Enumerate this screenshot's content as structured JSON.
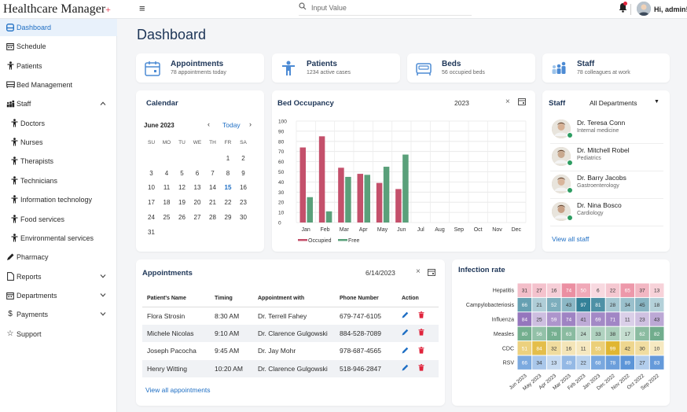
{
  "header": {
    "brand": "Healthcare Manager",
    "brand_plus": "+",
    "search_placeholder": "Input Value",
    "greeting": "Hi, admin!"
  },
  "sidebar": {
    "items": [
      {
        "label": "Dashboard",
        "icon": "dashboard-icon",
        "active": true
      },
      {
        "label": "Schedule",
        "icon": "calendar-icon"
      },
      {
        "label": "Patients",
        "icon": "person-icon"
      },
      {
        "label": "Bed Management",
        "icon": "bed-icon"
      },
      {
        "label": "Staff",
        "icon": "staff-icon",
        "expanded": true
      },
      {
        "label": "Doctors",
        "icon": "person-icon",
        "sub": true
      },
      {
        "label": "Nurses",
        "icon": "person-icon",
        "sub": true
      },
      {
        "label": "Therapists",
        "icon": "person-icon",
        "sub": true
      },
      {
        "label": "Technicians",
        "icon": "person-icon",
        "sub": true
      },
      {
        "label": "Information technology",
        "icon": "person-icon",
        "sub": true
      },
      {
        "label": "Food services",
        "icon": "person-icon",
        "sub": true
      },
      {
        "label": "Environmental services",
        "icon": "person-icon",
        "sub": true
      },
      {
        "label": "Pharmacy",
        "icon": "pen-icon"
      },
      {
        "label": "Reports",
        "icon": "document-icon",
        "chevron": true
      },
      {
        "label": "Departments",
        "icon": "calendar-icon",
        "chevron": true
      },
      {
        "label": "Payments",
        "icon": "dollar-icon",
        "chevron": true
      },
      {
        "label": "Support",
        "icon": "star-icon"
      }
    ]
  },
  "page": {
    "title": "Dashboard"
  },
  "stats": [
    {
      "title": "Appointments",
      "subtitle": "78 appointments today",
      "icon": "calendar-icon"
    },
    {
      "title": "Patients",
      "subtitle": "1234 active cases",
      "icon": "person-icon"
    },
    {
      "title": "Beds",
      "subtitle": "56 occupied beds",
      "icon": "bed-icon"
    },
    {
      "title": "Staff",
      "subtitle": "78 colleagues at work",
      "icon": "team-icon"
    }
  ],
  "calendar": {
    "title": "Calendar",
    "month": "June 2023",
    "today_label": "Today",
    "dow": [
      "SU",
      "MO",
      "TU",
      "WE",
      "TH",
      "FR",
      "SA"
    ],
    "weeks": [
      [
        "",
        "",
        "",
        "",
        "",
        "1",
        "2"
      ],
      [
        "3",
        "4",
        "5",
        "6",
        "7",
        "8",
        "9"
      ],
      [
        "10",
        "11",
        "12",
        "13",
        "14",
        "15",
        "16"
      ],
      [
        "17",
        "18",
        "19",
        "20",
        "21",
        "22",
        "23"
      ],
      [
        "24",
        "25",
        "26",
        "27",
        "28",
        "29",
        "30"
      ],
      [
        "31",
        "",
        "",
        "",
        "",
        "",
        ""
      ]
    ],
    "highlighted": "15"
  },
  "bed_occupancy": {
    "title": "Bed Occupancy",
    "year": "2023",
    "colors": {
      "occupied": "#c4506b",
      "free": "#5aa07a"
    }
  },
  "staff_panel": {
    "title": "Staff",
    "filter": "All Departments",
    "members": [
      {
        "name": "Dr. Teresa Conn",
        "role": "Internal medicine"
      },
      {
        "name": "Dr. Mitchell Robel",
        "role": "Pediatrics"
      },
      {
        "name": "Dr. Barry Jacobs",
        "role": "Gastroenterology"
      },
      {
        "name": "Dr. Nina Bosco",
        "role": "Cardiology"
      }
    ],
    "view_all": "View all staff"
  },
  "appointments": {
    "title": "Appointments",
    "date": "6/14/2023",
    "columns": [
      "Patient's Name",
      "Timing",
      "Appointment with",
      "Phone Number",
      "Action"
    ],
    "rows": [
      [
        "Flora Strosin",
        "8:30 AM",
        "Dr. Terrell Fahey",
        "679-747-6105"
      ],
      [
        "Michele Nicolas",
        "9:10 AM",
        "Dr. Clarence Gulgowski",
        "884-528-7089"
      ],
      [
        "Joseph Pacocha",
        "9:45 AM",
        "Dr. Jay Mohr",
        "978-687-4565"
      ],
      [
        "Henry Witting",
        "10:20 AM",
        "Dr. Clarence Gulgowski",
        "518-946-2847"
      ]
    ],
    "view_all": "View all appointments"
  },
  "chart_data": [
    {
      "type": "bar",
      "title": "Bed Occupancy",
      "categories": [
        "Jan",
        "Feb",
        "Mar",
        "Apr",
        "May",
        "Jun",
        "Jul",
        "Aug",
        "Sep",
        "Oct",
        "Nov",
        "Dec"
      ],
      "series": [
        {
          "name": "Occupied",
          "values": [
            74,
            85,
            54,
            48,
            39,
            33,
            null,
            null,
            null,
            null,
            null,
            null
          ]
        },
        {
          "name": "Free",
          "values": [
            25,
            11,
            45,
            47,
            55,
            67,
            null,
            null,
            null,
            null,
            null,
            null
          ]
        }
      ],
      "ylim": [
        0,
        100
      ],
      "yticks": [
        0,
        10,
        20,
        30,
        40,
        50,
        60,
        70,
        80,
        90,
        100
      ],
      "grid": true,
      "legend": "bottom"
    },
    {
      "type": "heatmap",
      "title": "Infection rate",
      "rows": [
        "Hepatitis",
        "Campylobacteriosis",
        "Influenza",
        "Measles",
        "CDC",
        "RSV"
      ],
      "columns": [
        "Jun 2023",
        "May 2023",
        "Apr 2023",
        "Mar 2023",
        "Feb 2023",
        "Jan 2023",
        "Dec 2022",
        "Nov 2022",
        "Oct 2022",
        "Sep 2022"
      ],
      "row_colors": [
        "#e6728a",
        "#2f7e96",
        "#8663b4",
        "#5aa07a",
        "#e0b530",
        "#4d8bd4"
      ],
      "values": [
        [
          31,
          27,
          16,
          74,
          50,
          6,
          22,
          65,
          37,
          13
        ],
        [
          66,
          21,
          52,
          43,
          97,
          81,
          28,
          34,
          45,
          18
        ],
        [
          84,
          25,
          59,
          74,
          41,
          69,
          71,
          11,
          23,
          43
        ],
        [
          80,
          56,
          78,
          63,
          24,
          33,
          38,
          17,
          62,
          82
        ],
        [
          51,
          84,
          32,
          16,
          11,
          55,
          99,
          42,
          30,
          10
        ],
        [
          66,
          34,
          13,
          49,
          22,
          68,
          78,
          89,
          27,
          83
        ]
      ]
    }
  ]
}
